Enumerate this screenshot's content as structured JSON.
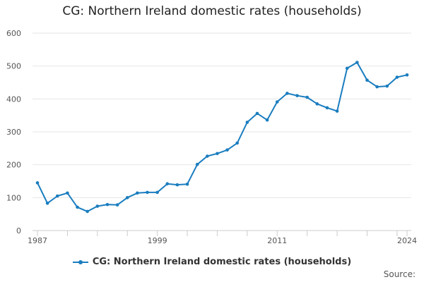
{
  "chart_data": {
    "type": "line",
    "title": "CG: Northern Ireland domestic rates (households)",
    "xlabel": "",
    "ylabel": "",
    "xlim": [
      1987,
      2024
    ],
    "ylim": [
      0,
      600
    ],
    "yticks": [
      0,
      100,
      200,
      300,
      400,
      500,
      600
    ],
    "xticks_labeled": [
      1987,
      1999,
      2011,
      2024
    ],
    "xtick_labels": [
      "1987",
      "1999",
      "2011",
      "2024"
    ],
    "ytick_labels": [
      "0",
      "100",
      "200",
      "300",
      "400",
      "500",
      "600"
    ],
    "grid": "horizontal",
    "legend_position": "bottom",
    "series": [
      {
        "name": "CG: Northern Ireland domestic rates (households)",
        "color": "#1a7dbf",
        "x": [
          1987,
          1988,
          1989,
          1990,
          1991,
          1992,
          1993,
          1994,
          1995,
          1996,
          1997,
          1998,
          1999,
          2000,
          2001,
          2002,
          2003,
          2004,
          2005,
          2006,
          2007,
          2008,
          2009,
          2010,
          2011,
          2012,
          2013,
          2014,
          2015,
          2016,
          2017,
          2018,
          2019,
          2020,
          2021,
          2022,
          2023,
          2024
        ],
        "values": [
          145,
          83,
          105,
          114,
          71,
          58,
          74,
          79,
          78,
          100,
          114,
          116,
          116,
          142,
          139,
          141,
          201,
          226,
          234,
          245,
          266,
          329,
          356,
          336,
          391,
          417,
          410,
          405,
          385,
          373,
          363,
          493,
          511,
          457,
          437,
          439,
          466,
          473
        ]
      }
    ]
  },
  "source_label": "Source:"
}
